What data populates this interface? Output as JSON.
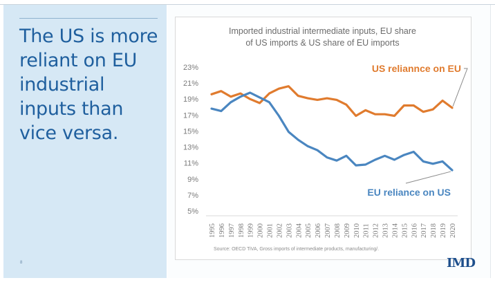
{
  "slide": {
    "headline": "The US is more reliant on EU industrial inputs than vice versa.",
    "slide_number": "8",
    "logo": "IMD",
    "source": "Source: OECD TiVA, Gross imports of intermediate products, manufacturing/."
  },
  "colors": {
    "us_reliance": "#e07b2e",
    "eu_reliance": "#4a86c0",
    "headline": "#1f5f9e",
    "panel": "#d6e8f5"
  },
  "chart_data": {
    "type": "line",
    "title": "Imported industrial intermediate inputs, EU share of US imports & US share of EU imports",
    "title_lines": [
      "Imported industrial intermediate inputs, EU share",
      "of US imports & US share of EU imports"
    ],
    "xlabel": "",
    "ylabel": "",
    "x": [
      "1995",
      "1996",
      "1997",
      "1998",
      "1999",
      "2000",
      "2001",
      "2002",
      "2003",
      "2004",
      "2005",
      "2006",
      "2007",
      "2008",
      "2009",
      "2010",
      "2011",
      "2012",
      "2013",
      "2014",
      "2015",
      "2016",
      "2017",
      "2018",
      "2019",
      "2020"
    ],
    "ylim": [
      5,
      23
    ],
    "yticks": [
      5,
      7,
      9,
      11,
      13,
      15,
      17,
      19,
      21,
      23
    ],
    "ytick_labels": [
      "5%",
      "7%",
      "9%",
      "11%",
      "13%",
      "15%",
      "17%",
      "19%",
      "21%",
      "23%"
    ],
    "grid": false,
    "legend": "inline-labels",
    "series": [
      {
        "name": "US reliannce on EU",
        "color": "#e07b2e",
        "label_position": "top-right",
        "values": [
          19.6,
          20.0,
          19.3,
          19.7,
          19.0,
          18.5,
          19.7,
          20.3,
          20.6,
          19.4,
          19.1,
          18.9,
          19.1,
          18.9,
          18.3,
          16.9,
          17.6,
          17.1,
          17.1,
          16.9,
          18.2,
          18.2,
          17.4,
          17.7,
          18.8,
          17.9
        ]
      },
      {
        "name": "EU reliance on US",
        "color": "#4a86c0",
        "label_position": "bottom-right",
        "values": [
          17.8,
          17.5,
          18.6,
          19.3,
          19.8,
          19.2,
          18.6,
          16.9,
          14.9,
          13.9,
          13.1,
          12.6,
          11.7,
          11.3,
          11.9,
          10.7,
          10.8,
          11.4,
          11.9,
          11.4,
          12.0,
          12.4,
          11.2,
          10.9,
          11.2,
          10.1
        ]
      }
    ]
  }
}
